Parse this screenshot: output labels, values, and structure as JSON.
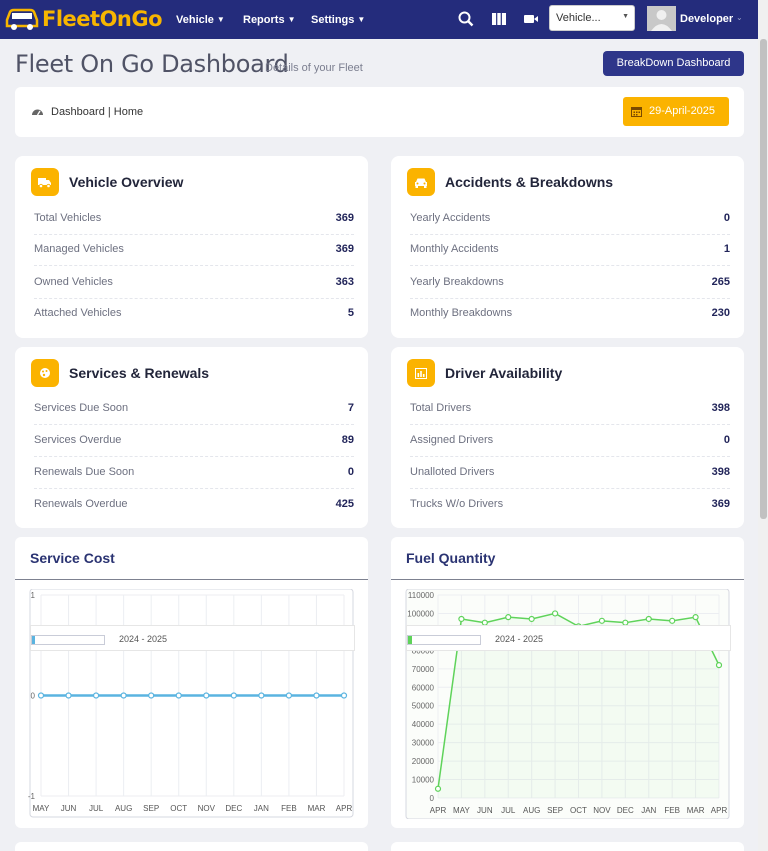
{
  "brand": {
    "name": "FleetOnGo"
  },
  "nav": {
    "vehicle": "Vehicle",
    "reports": "Reports",
    "settings": "Settings",
    "vehicle_select": "Vehicle...",
    "user": "Developer",
    "caret": "⌄"
  },
  "header": {
    "title": "Fleet On Go Dashboard",
    "subtitle": "Details of your Fleet",
    "breakdown_button": "BreakDown Dashboard",
    "breadcrumb": "Dashboard | Home",
    "date": "29-April-2025"
  },
  "cards": {
    "vehicle_overview": {
      "title": "Vehicle Overview",
      "rows": [
        {
          "label": "Total Vehicles",
          "value": "369"
        },
        {
          "label": "Managed Vehicles",
          "value": "369"
        },
        {
          "label": "Owned Vehicles",
          "value": "363"
        },
        {
          "label": "Attached Vehicles",
          "value": "5"
        }
      ]
    },
    "accidents": {
      "title": "Accidents & Breakdowns",
      "rows": [
        {
          "label": "Yearly Accidents",
          "value": "0"
        },
        {
          "label": "Monthly Accidents",
          "value": "1"
        },
        {
          "label": "Yearly Breakdowns",
          "value": "265"
        },
        {
          "label": "Monthly Breakdowns",
          "value": "230"
        }
      ]
    },
    "services": {
      "title": "Services & Renewals",
      "rows": [
        {
          "label": "Services Due Soon",
          "value": "7"
        },
        {
          "label": "Services Overdue",
          "value": "89"
        },
        {
          "label": "Renewals Due Soon",
          "value": "0"
        },
        {
          "label": "Renewals Overdue",
          "value": "425"
        }
      ]
    },
    "drivers": {
      "title": "Driver Availability",
      "rows": [
        {
          "label": "Total Drivers",
          "value": "398"
        },
        {
          "label": "Assigned Drivers",
          "value": "0"
        },
        {
          "label": "Unalloted Drivers",
          "value": "398"
        },
        {
          "label": "Trucks W/o Drivers",
          "value": "369"
        }
      ]
    }
  },
  "colors": {
    "navbar": "#242c7c",
    "accent": "#fbb300",
    "service_line": "#5ab4e0",
    "fuel_line": "#5fd35a"
  },
  "chart_data": [
    {
      "type": "line",
      "title": "Service Cost",
      "categories": [
        "MAY",
        "JUN",
        "JUL",
        "AUG",
        "SEP",
        "OCT",
        "NOV",
        "DEC",
        "JAN",
        "FEB",
        "MAR",
        "APR"
      ],
      "series": [
        {
          "name": "2024 - 2025",
          "values": [
            0,
            0,
            0,
            0,
            0,
            0,
            0,
            0,
            0,
            0,
            0,
            0
          ]
        }
      ],
      "ylim": [
        -1,
        1
      ],
      "yticks": [
        "1",
        "0",
        "-1"
      ],
      "grid": true,
      "legend": "top-left"
    },
    {
      "type": "line",
      "title": "Fuel Quantity",
      "categories": [
        "APR",
        "MAY",
        "JUN",
        "JUL",
        "AUG",
        "SEP",
        "OCT",
        "NOV",
        "DEC",
        "JAN",
        "FEB",
        "MAR",
        "APR"
      ],
      "series": [
        {
          "name": "2024 - 2025",
          "values": [
            5000,
            97000,
            95000,
            98000,
            97000,
            100000,
            93000,
            96000,
            95000,
            97000,
            96000,
            98000,
            72000
          ]
        }
      ],
      "ylim": [
        0,
        110000
      ],
      "yticks": [
        "0",
        "10000",
        "20000",
        "30000",
        "40000",
        "50000",
        "60000",
        "70000",
        "80000",
        "90000",
        "100000",
        "110000"
      ],
      "grid": true,
      "legend": "top-left"
    }
  ]
}
